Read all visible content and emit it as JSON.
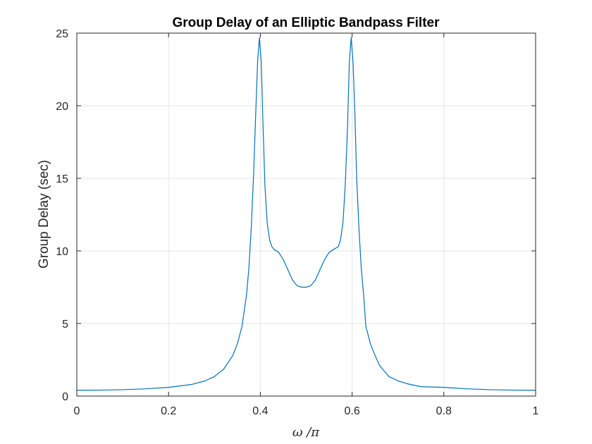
{
  "chart_data": {
    "type": "line",
    "title": "Group Delay of an Elliptic Bandpass Filter",
    "xlabel": "ω /π",
    "ylabel": "Group Delay (sec)",
    "xlim": [
      0,
      1
    ],
    "ylim": [
      0,
      25
    ],
    "xticks": [
      0,
      0.2,
      0.4,
      0.6,
      0.8,
      1
    ],
    "xtick_labels": [
      "0",
      "0.2",
      "0.4",
      "0.6",
      "0.8",
      "1"
    ],
    "yticks": [
      0,
      5,
      10,
      15,
      20,
      25
    ],
    "ytick_labels": [
      "0",
      "5",
      "10",
      "15",
      "20",
      "25"
    ],
    "grid": true,
    "series": [
      {
        "color": "#0072BD",
        "x": [
          0,
          0.05,
          0.1,
          0.15,
          0.2,
          0.25,
          0.28,
          0.3,
          0.32,
          0.34,
          0.35,
          0.36,
          0.37,
          0.375,
          0.38,
          0.385,
          0.39,
          0.394,
          0.398,
          0.402,
          0.406,
          0.41,
          0.415,
          0.42,
          0.425,
          0.43,
          0.44,
          0.45,
          0.46,
          0.47,
          0.48,
          0.49,
          0.5,
          0.51,
          0.52,
          0.53,
          0.54,
          0.55,
          0.56,
          0.57,
          0.575,
          0.58,
          0.585,
          0.59,
          0.594,
          0.598,
          0.602,
          0.606,
          0.61,
          0.615,
          0.62,
          0.625,
          0.63,
          0.64,
          0.65,
          0.66,
          0.68,
          0.7,
          0.72,
          0.75,
          0.8,
          0.85,
          0.9,
          0.95,
          1
        ],
        "y": [
          0.4,
          0.41,
          0.44,
          0.5,
          0.6,
          0.8,
          1.05,
          1.35,
          1.85,
          2.8,
          3.6,
          4.8,
          7.0,
          8.8,
          11.5,
          15.0,
          19.5,
          23.0,
          24.7,
          23.0,
          18.5,
          14.5,
          11.9,
          10.8,
          10.3,
          10.1,
          9.9,
          9.4,
          8.7,
          8.0,
          7.6,
          7.5,
          7.5,
          7.6,
          8.0,
          8.7,
          9.4,
          9.9,
          10.1,
          10.3,
          10.8,
          11.9,
          14.5,
          18.5,
          23.0,
          24.7,
          23.0,
          19.5,
          15.0,
          11.5,
          8.8,
          7.0,
          4.8,
          3.6,
          2.8,
          2.1,
          1.35,
          1.05,
          0.85,
          0.65,
          0.6,
          0.5,
          0.44,
          0.41,
          0.4
        ]
      }
    ]
  }
}
